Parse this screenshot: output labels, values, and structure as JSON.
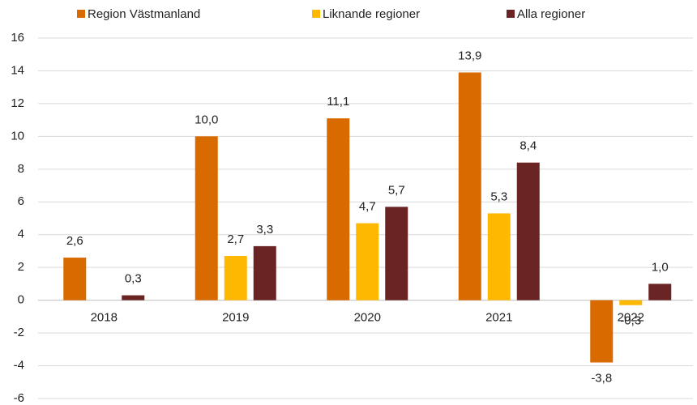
{
  "chart_data": {
    "type": "bar",
    "categories": [
      "2018",
      "2019",
      "2020",
      "2021",
      "2022"
    ],
    "series": [
      {
        "name": "Region Västmanland",
        "color": "#d96a00",
        "values": [
          2.6,
          10.0,
          11.1,
          13.9,
          -3.8
        ],
        "value_labels": [
          "2,6",
          "10,0",
          "11,1",
          "13,9",
          "-3,8"
        ]
      },
      {
        "name": "Liknande regioner",
        "color": "#ffb800",
        "values": [
          null,
          2.7,
          4.7,
          5.3,
          -0.3
        ],
        "value_labels": [
          null,
          "2,7",
          "4,7",
          "5,3",
          "-0,3"
        ]
      },
      {
        "name": "Alla regioner",
        "color": "#6b2424",
        "values": [
          0.3,
          3.3,
          5.7,
          8.4,
          1.0
        ],
        "value_labels": [
          "0,3",
          "3,3",
          "5,7",
          "8,4",
          "1,0"
        ]
      }
    ],
    "ylim": [
      -6,
      16
    ],
    "yticks": [
      -6,
      -4,
      -2,
      0,
      2,
      4,
      6,
      8,
      10,
      12,
      14,
      16
    ],
    "grid": true,
    "legend": "top"
  }
}
